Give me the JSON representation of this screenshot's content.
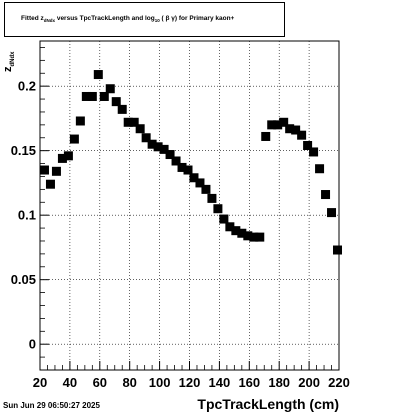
{
  "title": {
    "prefix": "Fitted",
    "z": "z",
    "z_sub": "dNdx",
    "mid": "versus TpcTrackLength and log",
    "log_sub": "10",
    "paren": "( β γ)",
    "suffix": "for Primary kaon+"
  },
  "timestamp": "Sun Jun 29 06:50:27 2025",
  "chart_data": {
    "type": "scatter",
    "xlabel": "TpcTrackLength (cm)",
    "ylabel": "z",
    "ylabel_sub": "dNdx",
    "xlim": [
      20,
      220
    ],
    "ylim": [
      -0.02,
      0.235
    ],
    "xticks": [
      "20",
      "40",
      "60",
      "80",
      "100",
      "120",
      "140",
      "160",
      "180",
      "200",
      "220"
    ],
    "yticks": [
      "0",
      "0.05",
      "0.1",
      "0.15",
      "0.2"
    ],
    "grid": true,
    "x": [
      23,
      27,
      31,
      35,
      39,
      43,
      47,
      51,
      55,
      59,
      63,
      67,
      71,
      75,
      79,
      83,
      87,
      91,
      95,
      99,
      103,
      107,
      111,
      115,
      119,
      123,
      127,
      131,
      135,
      139,
      143,
      147,
      151,
      155,
      159,
      163,
      167,
      171,
      175,
      179,
      183,
      187,
      191,
      195,
      199,
      203,
      207,
      211,
      215,
      219
    ],
    "y": [
      0.135,
      0.124,
      0.134,
      0.144,
      0.146,
      0.159,
      0.173,
      0.192,
      0.192,
      0.209,
      0.192,
      0.198,
      0.188,
      0.182,
      0.172,
      0.172,
      0.167,
      0.16,
      0.155,
      0.153,
      0.151,
      0.147,
      0.142,
      0.137,
      0.135,
      0.129,
      0.125,
      0.12,
      0.113,
      0.105,
      0.097,
      0.091,
      0.088,
      0.086,
      0.084,
      0.083,
      0.083,
      0.161,
      0.17,
      0.17,
      0.172,
      0.167,
      0.166,
      0.162,
      0.154,
      0.149,
      0.136,
      0.116,
      0.102,
      0.073
    ]
  }
}
